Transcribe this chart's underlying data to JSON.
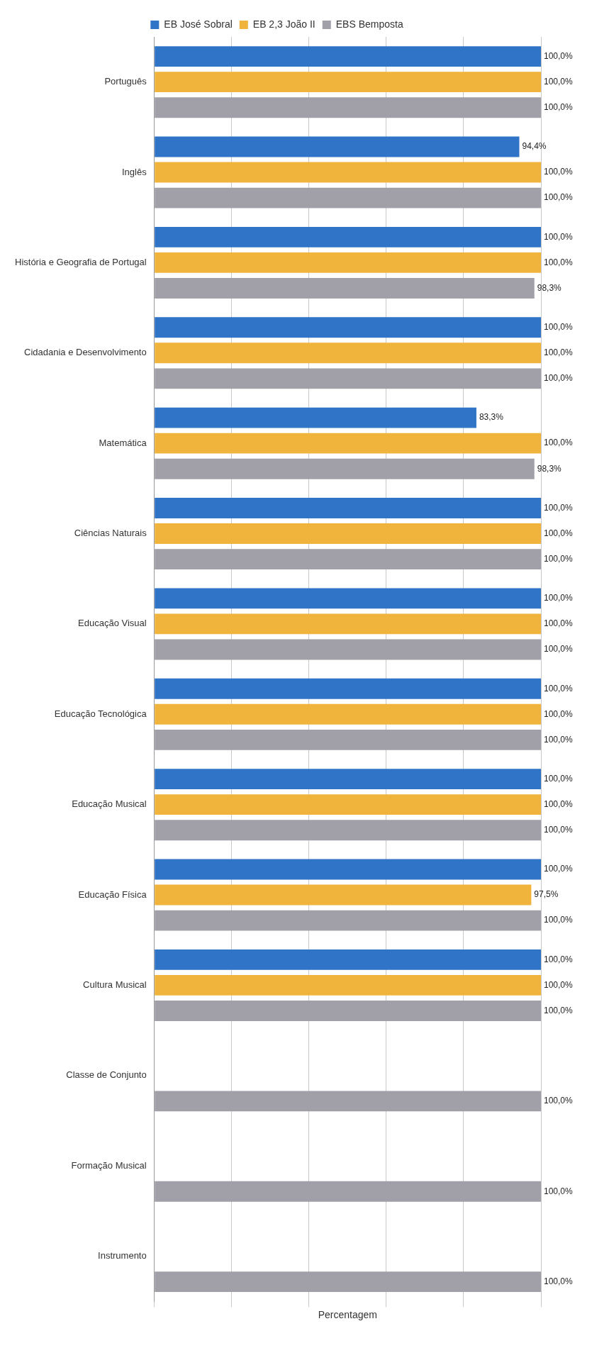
{
  "chart_data": {
    "type": "bar",
    "orientation": "horizontal",
    "xlabel": "Percentagem",
    "categories": [
      "Português",
      "Inglês",
      "História e Geografia de Portugal",
      "Cidadania e Desenvolvimento",
      "Matemática",
      "Ciências Naturais",
      "Educação Visual",
      "Educação Tecnológica",
      "Educação Musical",
      "Educação Física",
      "Cultura Musical",
      "Classe de Conjunto",
      "Formação Musical",
      "Instrumento"
    ],
    "series": [
      {
        "name": "EB José Sobral",
        "color": "#2f74c6",
        "values": [
          100,
          94.4,
          100,
          100,
          83.3,
          100,
          100,
          100,
          100,
          100,
          100,
          null,
          null,
          null
        ],
        "value_labels": [
          "100,0%",
          "94,4%",
          "100,0%",
          "100,0%",
          "83,3%",
          "100,0%",
          "100,0%",
          "100,0%",
          "100,0%",
          "100,0%",
          "100,0%",
          null,
          null,
          null
        ]
      },
      {
        "name": "EB 2,3 João II",
        "color": "#f0b43c",
        "values": [
          100,
          100,
          100,
          100,
          100,
          100,
          100,
          100,
          100,
          97.5,
          100,
          null,
          null,
          null
        ],
        "value_labels": [
          "100,0%",
          "100,0%",
          "100,0%",
          "100,0%",
          "100,0%",
          "100,0%",
          "100,0%",
          "100,0%",
          "100,0%",
          "97,5%",
          "100,0%",
          null,
          null,
          null
        ]
      },
      {
        "name": "EBS Bemposta",
        "color": "#a19fa7",
        "values": [
          100,
          100,
          98.3,
          100,
          98.3,
          100,
          100,
          100,
          100,
          100,
          100,
          100,
          100,
          100
        ],
        "value_labels": [
          "100,0%",
          "100,0%",
          "98,3%",
          "100,0%",
          "98,3%",
          "100,0%",
          "100,0%",
          "100,0%",
          "100,0%",
          "100,0%",
          "100,0%",
          "100,0%",
          "100,0%",
          "100,0%"
        ]
      }
    ],
    "xlim": [
      0,
      100
    ],
    "xticks": [
      {
        "value": 0,
        "label": null
      },
      {
        "value": 20,
        "label": null
      },
      {
        "value": 40,
        "label": null
      },
      {
        "value": 60,
        "label": null
      },
      {
        "value": 80,
        "label": null
      },
      {
        "value": 100,
        "label": null
      }
    ],
    "grid": "x",
    "legend": "top",
    "tick_labels": "y"
  }
}
